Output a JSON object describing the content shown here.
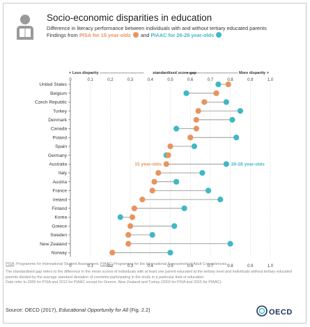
{
  "header": {
    "title": "Socio-economic disparities in education",
    "subtitle": "Difference in literacy performance between individuals with and without tertiary educated parents",
    "findings_prefix": "Findings from",
    "pisa_label": "PISA for 15 year-olds",
    "and_text": "and",
    "piaac_label": "PIAAC for 26-28 year-olds"
  },
  "axis_banner": {
    "left": "< Less disparity ----------------------------------",
    "center": "standardised score gap",
    "right": "---------------------------------------- More disparity >"
  },
  "colors": {
    "pisa": "#e8935e",
    "piaac": "#3fb8c5",
    "connector": "#888888"
  },
  "chart_data": {
    "type": "dot",
    "xlim": [
      0,
      1.0
    ],
    "x_ticks": [
      "0",
      "0.1",
      "0.2",
      "0.3",
      "0.4",
      "0.5",
      "0.6",
      "0.7",
      "0.8",
      "0.9",
      "1.0"
    ],
    "categories": [
      "United States",
      "Belgium",
      "Czech Republic",
      "Turkey",
      "Denmark",
      "Canada",
      "Poland",
      "Spain",
      "Germany",
      "Australia",
      "Italy",
      "Austria",
      "France",
      "Ireland",
      "Finland",
      "Korea",
      "Greece",
      "Sweden",
      "New Zealand",
      "Norway"
    ],
    "series": [
      {
        "name": "15 year-olds",
        "values": [
          0.79,
          0.73,
          0.67,
          0.64,
          0.63,
          0.63,
          0.6,
          0.5,
          0.49,
          0.48,
          0.44,
          0.42,
          0.41,
          0.36,
          0.32,
          0.31,
          0.3,
          0.29,
          0.29,
          0.21
        ]
      },
      {
        "name": "26-28 year-olds",
        "values": [
          0.74,
          0.58,
          0.78,
          0.85,
          0.81,
          0.53,
          0.83,
          0.62,
          0.48,
          0.78,
          0.66,
          0.53,
          0.69,
          0.75,
          0.57,
          0.25,
          0.52,
          0.41,
          0.8,
          0.5
        ]
      }
    ],
    "annotations": {
      "pisa": "15 year-olds",
      "piaac": "26-28 year-olds",
      "row": "Australia"
    }
  },
  "notes": {
    "pisa_abbr": "PISA",
    "pisa_def": ": Programme for International Student Assessment. ",
    "piaac_abbr": "PIAAC",
    "piaac_def": ": Programme for the International Assessment of Adult Competencies.",
    "gap_text": "The standardised gap refers to the difference in the mean scores of individuals with at least one parent educated at the tertiary level and individuals without tertiary educated parents divided by the average standard deviation of countries participating in the study in a particular field of education.",
    "data_text": "Data refer to 2000 for PISA and 2012 for PIAAC except for Greece, New Zealand and Turkey (2003 for PISA and 2015 for PIAAC)."
  },
  "source": {
    "prefix": "Source: OECD (2017), ",
    "title": "Educational Opportunity for All",
    "suffix": " (Fig. 2.2)"
  },
  "logo": {
    "text": "OECD"
  }
}
